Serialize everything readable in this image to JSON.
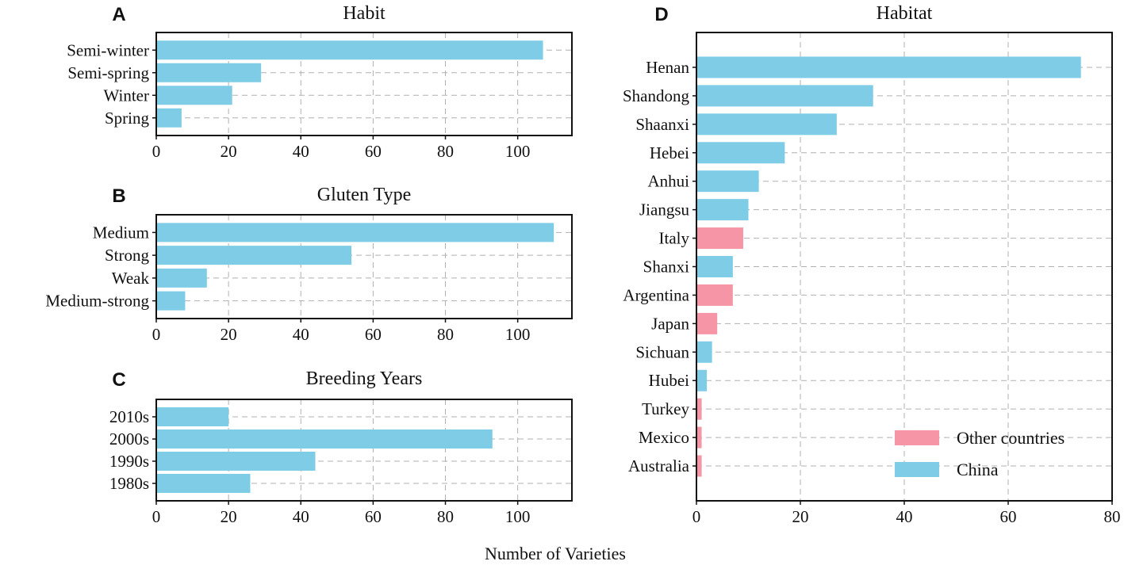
{
  "figure": {
    "shared_xlabel": "Number of Varieties",
    "colors": {
      "china": "#7ecce6",
      "other": "#f595a5",
      "grid": "#b0b0b0",
      "frame": "#111111"
    }
  },
  "chart_data": [
    {
      "type": "bar",
      "orientation": "horizontal",
      "panel": "A",
      "title": "Habit",
      "xlabel": "",
      "xlim": [
        0,
        115
      ],
      "xticks": [
        0,
        20,
        40,
        60,
        80,
        100
      ],
      "grid": true,
      "categories": [
        "Semi-winter",
        "Semi-spring",
        "Winter",
        "Spring"
      ],
      "values": [
        107,
        29,
        21,
        7
      ],
      "groups": [
        "china",
        "china",
        "china",
        "china"
      ]
    },
    {
      "type": "bar",
      "orientation": "horizontal",
      "panel": "B",
      "title": "Gluten Type",
      "xlabel": "",
      "xlim": [
        0,
        115
      ],
      "xticks": [
        0,
        20,
        40,
        60,
        80,
        100
      ],
      "grid": true,
      "categories": [
        "Medium",
        "Strong",
        "Weak",
        "Medium-strong"
      ],
      "values": [
        110,
        54,
        14,
        8
      ],
      "groups": [
        "china",
        "china",
        "china",
        "china"
      ]
    },
    {
      "type": "bar",
      "orientation": "horizontal",
      "panel": "C",
      "title": "Breeding Years",
      "xlabel": "",
      "xlim": [
        0,
        115
      ],
      "xticks": [
        0,
        20,
        40,
        60,
        80,
        100
      ],
      "grid": true,
      "categories": [
        "2010s",
        "2000s",
        "1990s",
        "1980s"
      ],
      "values": [
        20,
        93,
        44,
        26
      ],
      "groups": [
        "china",
        "china",
        "china",
        "china"
      ]
    },
    {
      "type": "bar",
      "orientation": "horizontal",
      "panel": "D",
      "title": "Habitat",
      "xlabel": "",
      "xlim": [
        0,
        80
      ],
      "xticks": [
        0,
        20,
        40,
        60,
        80
      ],
      "grid": true,
      "categories": [
        "Henan",
        "Shandong",
        "Shaanxi",
        "Hebei",
        "Anhui",
        "Jiangsu",
        "Italy",
        "Shanxi",
        "Argentina",
        "Japan",
        "Sichuan",
        "Hubei",
        "Turkey",
        "Mexico",
        "Australia"
      ],
      "values": [
        74,
        34,
        27,
        17,
        12,
        10,
        9,
        7,
        7,
        4,
        3,
        2,
        1,
        1,
        1
      ],
      "groups": [
        "china",
        "china",
        "china",
        "china",
        "china",
        "china",
        "other",
        "china",
        "other",
        "other",
        "china",
        "china",
        "other",
        "other",
        "other"
      ],
      "legend": {
        "position": "lower-right",
        "entries": [
          {
            "label": "Other countries",
            "group": "other"
          },
          {
            "label": "China",
            "group": "china"
          }
        ]
      }
    }
  ]
}
